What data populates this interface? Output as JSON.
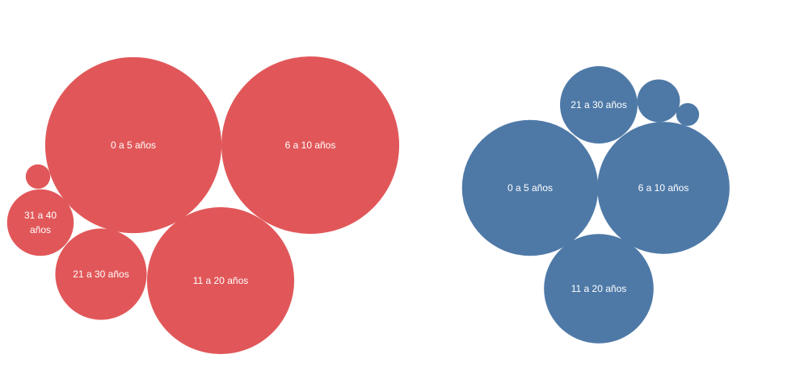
{
  "chart_data": [
    {
      "type": "bubble",
      "color": "#e15759",
      "categories": [
        "0 a 5 años",
        "6 a 10 años",
        "11 a 20 años",
        "21 a 30 años",
        "31 a 40 años",
        null
      ],
      "values": [
        119,
        121,
        83,
        32,
        17,
        2.3
      ]
    },
    {
      "type": "bubble",
      "color": "#4e79a7",
      "categories": [
        "0 a 5 años",
        "6 a 10 años",
        "11 a 20 años",
        "21 a 30 años",
        null,
        null
      ],
      "values": [
        71,
        67,
        46,
        23,
        7,
        2
      ]
    }
  ]
}
